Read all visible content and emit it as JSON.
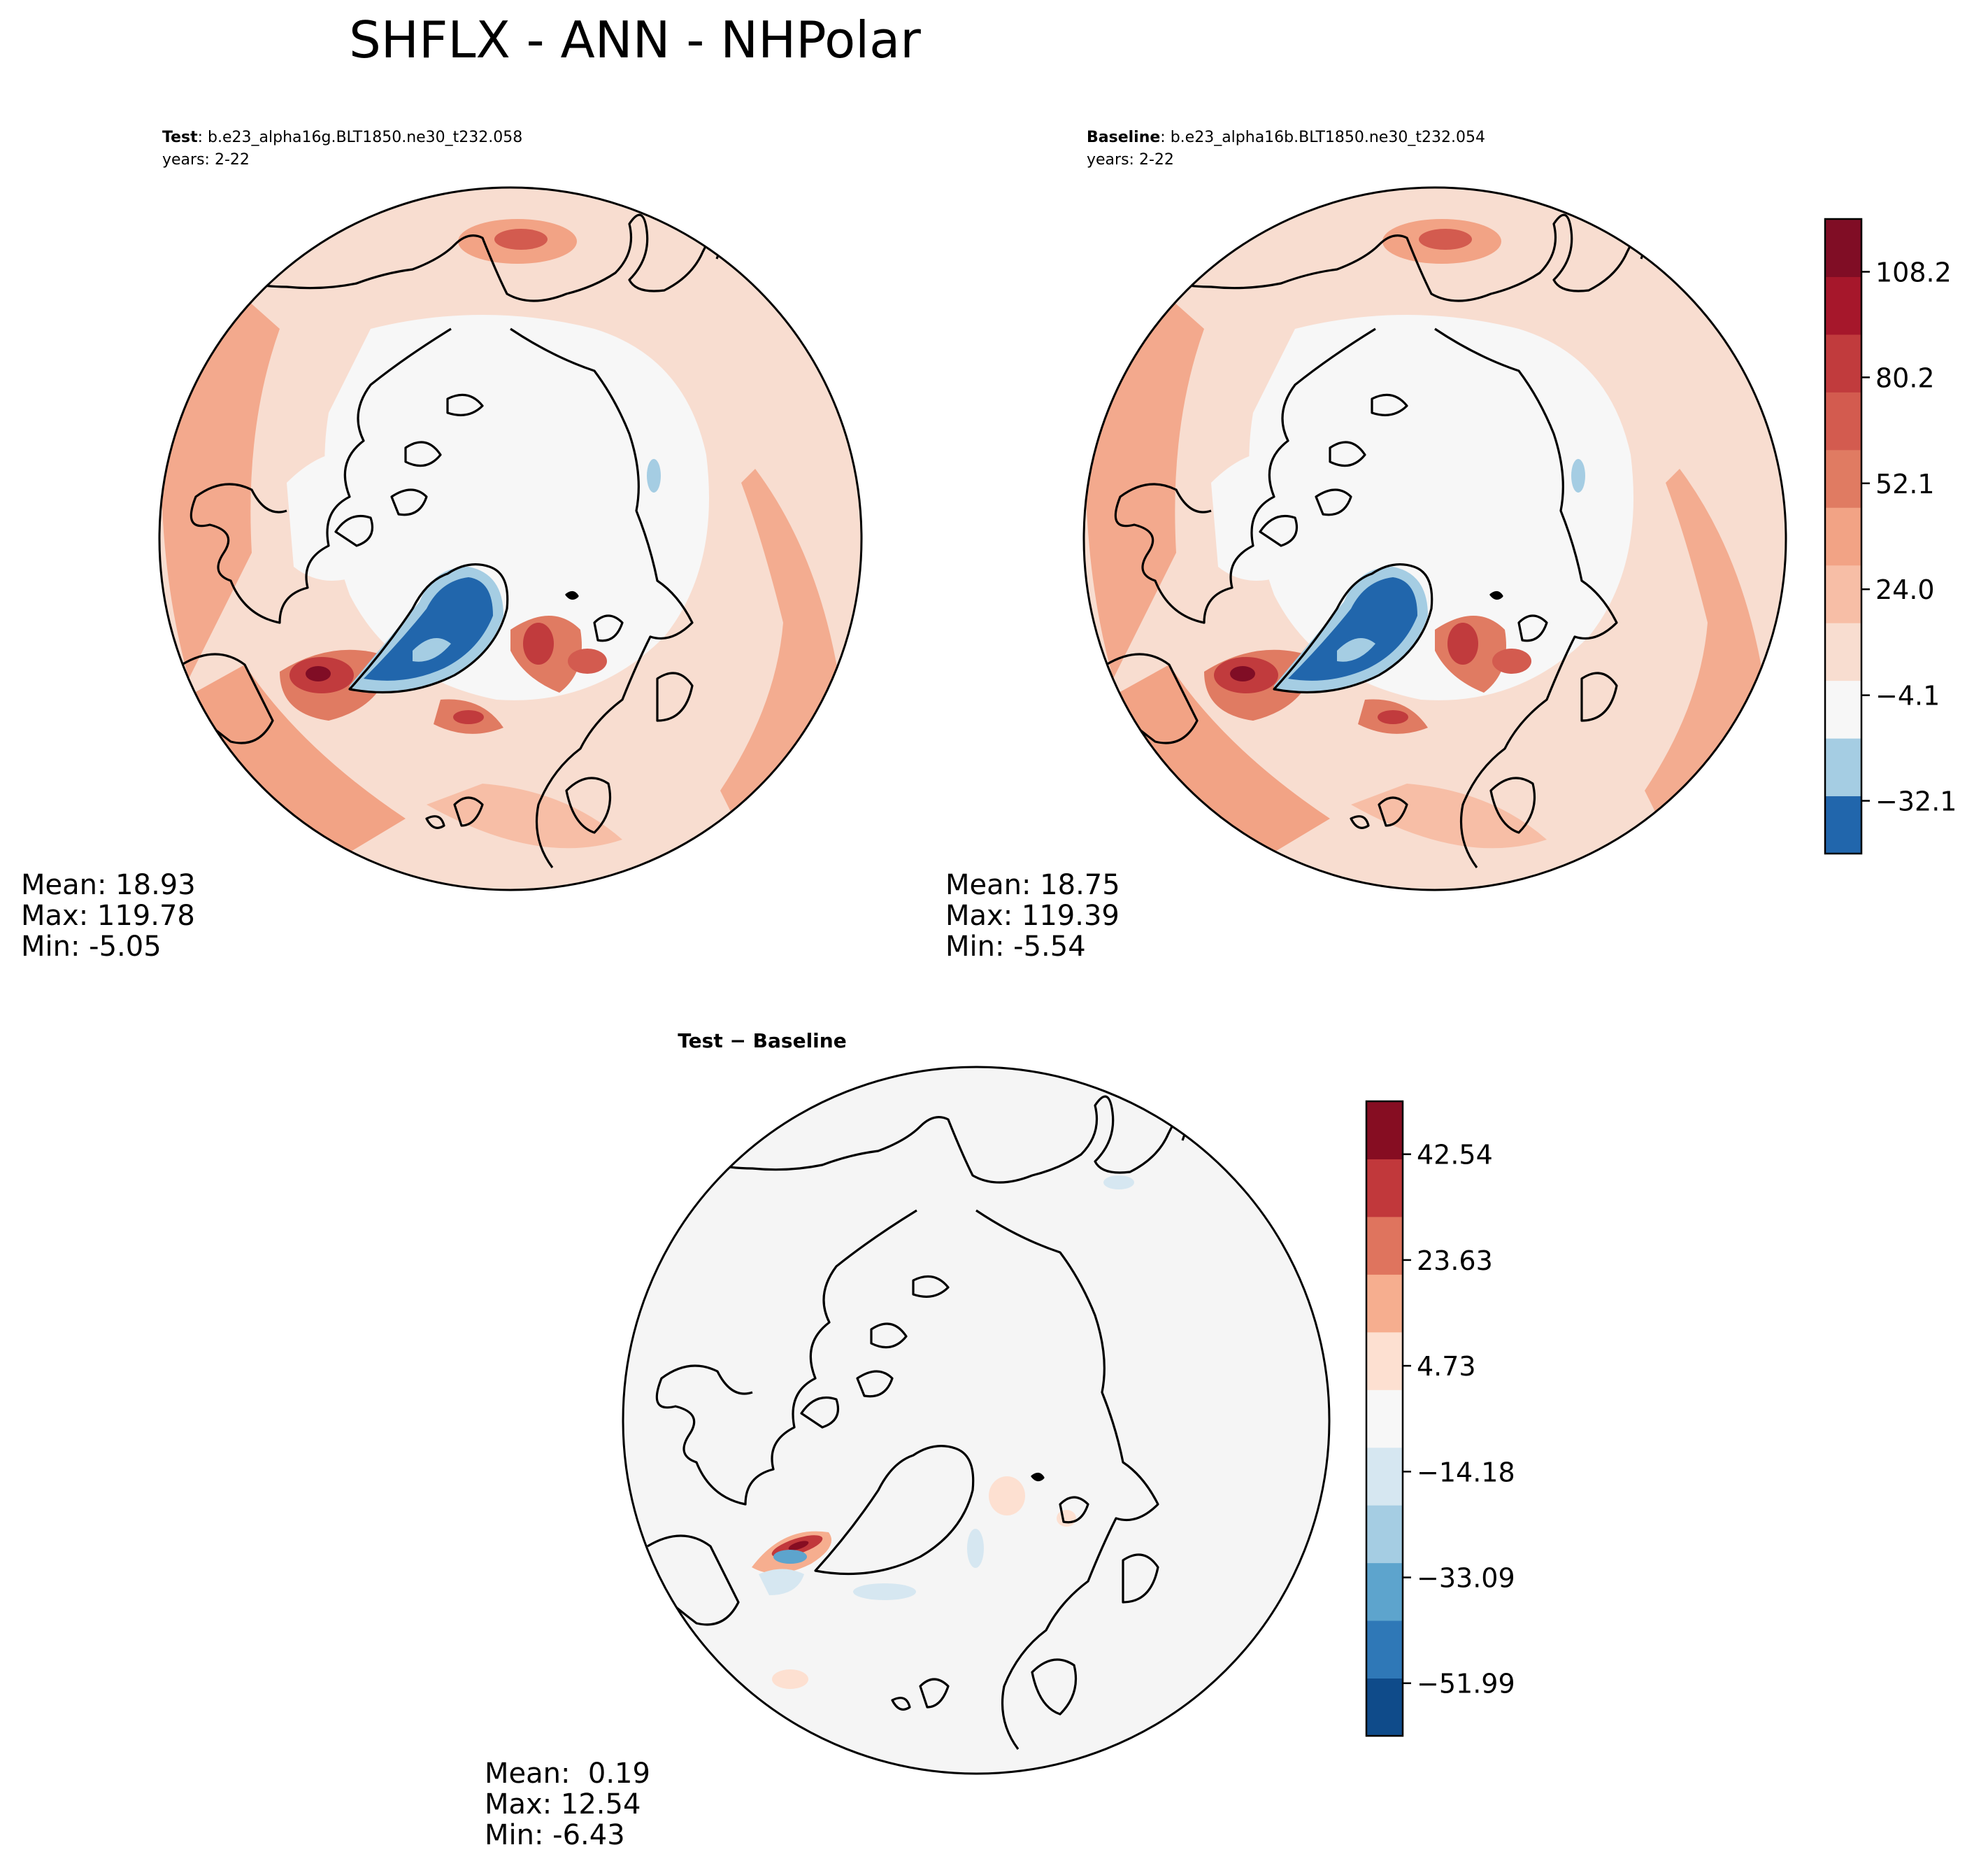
{
  "title": "SHFLX - ANN - NHPolar",
  "panels": {
    "test": {
      "label_bold": "Test",
      "label_rest": ": b.e23_alpha16g.BLT1850.ne30_t232.058",
      "years": "years: 2-22",
      "stats": {
        "mean": "Mean: 18.93",
        "max": "Max: 119.78",
        "min": "Min: -5.05"
      }
    },
    "baseline": {
      "label_bold": "Baseline",
      "label_rest": ": b.e23_alpha16b.BLT1850.ne30_t232.054",
      "years": "years: 2-22",
      "stats": {
        "mean": "Mean: 18.75",
        "max": "Max: 119.39",
        "min": "Min: -5.54"
      }
    },
    "diff": {
      "label_bold": "Test − Baseline",
      "stats": {
        "mean": "Mean:  0.19",
        "max": "Max: 12.54",
        "min": "Min: -6.43"
      }
    }
  },
  "colorbars": {
    "main": {
      "colors": [
        "#2166ac",
        "#a5cde3",
        "#f7f7f7",
        "#f8ddd0",
        "#f7bea6",
        "#f2a385",
        "#e07b62",
        "#d35b4f",
        "#c13b3d",
        "#a6172b",
        "#800d25"
      ],
      "tick_labels": [
        "108.2",
        "80.2",
        "52.1",
        "24.0",
        "−4.1",
        "−32.1"
      ]
    },
    "diff": {
      "colors": [
        "#0f4b8a",
        "#2f78b7",
        "#5da4cd",
        "#a5cde3",
        "#d6e7f1",
        "#f7f7f7",
        "#fde0d1",
        "#f6ae8f",
        "#df745e",
        "#c1383b",
        "#860d22"
      ],
      "tick_labels": [
        "42.54",
        "23.63",
        "4.73",
        "−14.18",
        "−33.09",
        "−51.99"
      ]
    }
  },
  "chart_data": {
    "type": "heatmap",
    "title": "SHFLX - ANN - NHPolar",
    "projection": "north polar stereographic",
    "maps": [
      {
        "name": "Test",
        "mean": 18.93,
        "max": 119.78,
        "min": -5.05
      },
      {
        "name": "Baseline",
        "mean": 18.75,
        "max": 119.39,
        "min": -5.54
      },
      {
        "name": "Test - Baseline",
        "mean": 0.19,
        "max": 12.54,
        "min": -6.43
      }
    ],
    "colorbar_main": {
      "levels": [
        -32.1,
        -4.1,
        24.0,
        52.1,
        80.2,
        108.2
      ],
      "range": [
        -46.1,
        122.2
      ]
    },
    "colorbar_diff": {
      "levels": [
        -51.99,
        -33.09,
        -14.18,
        4.73,
        23.63,
        42.54
      ],
      "range": [
        -61.4,
        52.0
      ]
    }
  }
}
